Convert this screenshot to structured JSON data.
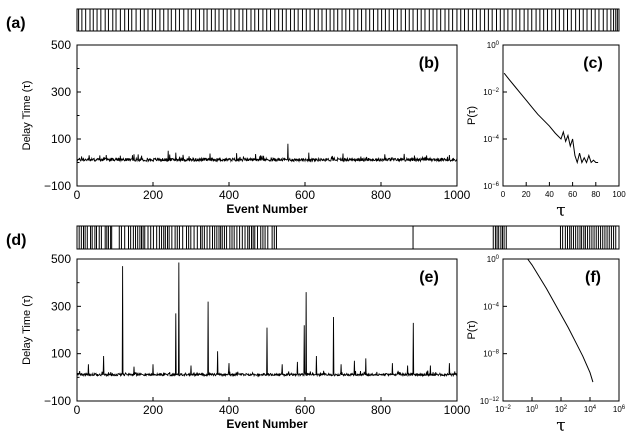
{
  "chart_data": [
    {
      "id": "a",
      "type": "barcode",
      "letter": "(a)",
      "x_range": [
        0,
        1000
      ],
      "event_positions": [
        3,
        9,
        16,
        24,
        30,
        37,
        44,
        52,
        58,
        66,
        72,
        80,
        88,
        95,
        101,
        109,
        117,
        124,
        131,
        139,
        145,
        153,
        160,
        168,
        174,
        182,
        189,
        197,
        205,
        211,
        219,
        226,
        234,
        240,
        248,
        255,
        262,
        270,
        277,
        284,
        291,
        299,
        306,
        313,
        321,
        328,
        335,
        343,
        350,
        357,
        365,
        372,
        379,
        386,
        394,
        401,
        408,
        416,
        423,
        430,
        438,
        445,
        452,
        460,
        467,
        474,
        481,
        489,
        496,
        503,
        511,
        518,
        525,
        533,
        540,
        547,
        555,
        562,
        569,
        576,
        584,
        591,
        598,
        606,
        613,
        620,
        628,
        635,
        642,
        650,
        657,
        664,
        671,
        679,
        686,
        693,
        701,
        708,
        715,
        722,
        730,
        737,
        744,
        752,
        759,
        766,
        774,
        781,
        788,
        795,
        803,
        810,
        817,
        825,
        832,
        839,
        847,
        854,
        861,
        868,
        876,
        883,
        890,
        898,
        905,
        912,
        920,
        927,
        934,
        941,
        949,
        956,
        963,
        971,
        978,
        985,
        990,
        994,
        997
      ]
    },
    {
      "id": "b",
      "type": "line",
      "letter": "(b)",
      "xlabel": "Event Number",
      "ylabel": "Delay Time (τ)",
      "xlim": [
        0,
        1000
      ],
      "ylim": [
        -100,
        500
      ],
      "xticks": [
        0,
        200,
        400,
        600,
        800,
        1000
      ],
      "yticks": [
        -100,
        100,
        300,
        500
      ],
      "baseline": 10,
      "noise": 8,
      "spikes": [
        [
          60,
          30
        ],
        [
          150,
          35
        ],
        [
          240,
          50
        ],
        [
          260,
          42
        ],
        [
          350,
          38
        ],
        [
          420,
          40
        ],
        [
          470,
          36
        ],
        [
          555,
          80
        ],
        [
          610,
          42
        ],
        [
          700,
          38
        ],
        [
          810,
          35
        ],
        [
          920,
          30
        ],
        [
          980,
          32
        ]
      ]
    },
    {
      "id": "c",
      "type": "line",
      "letter": "(c)",
      "ylabel": "P(τ)",
      "xlabel": "τ",
      "xlim": [
        0,
        100
      ],
      "ylog": true,
      "ylim_exp": [
        -6,
        0
      ],
      "xticks": [
        0,
        20,
        40,
        60,
        80,
        100
      ],
      "yticks": [
        "10⁰",
        "10⁻²",
        "10⁻⁴",
        "10⁻⁶"
      ],
      "x": [
        1,
        5,
        10,
        15,
        20,
        25,
        30,
        35,
        40,
        45,
        50,
        52,
        54,
        56,
        58,
        60,
        62,
        64,
        66,
        68,
        70,
        72,
        74,
        76,
        78,
        80,
        82
      ],
      "y_exp": [
        -1.2,
        -1.45,
        -1.75,
        -2.05,
        -2.35,
        -2.65,
        -2.95,
        -3.2,
        -3.45,
        -3.75,
        -4.0,
        -3.7,
        -4.1,
        -3.85,
        -4.3,
        -4.0,
        -4.7,
        -5.0,
        -4.6,
        -5.0,
        -4.8,
        -5.0,
        -4.7,
        -5.0,
        -4.9,
        -5.0,
        -5.0
      ]
    },
    {
      "id": "d",
      "type": "barcode",
      "letter": "(d)",
      "x_range": [
        0,
        1000
      ],
      "event_positions": [
        4,
        8,
        12,
        15,
        19,
        25,
        28,
        33,
        36,
        41,
        45,
        52,
        55,
        58,
        62,
        64,
        78,
        82,
        88,
        95,
        99,
        104,
        108,
        112,
        116,
        119,
        122,
        125,
        131,
        136,
        141,
        147,
        152,
        156,
        160,
        163,
        167,
        170,
        175,
        181,
        185,
        189,
        195,
        202,
        206,
        210,
        216,
        222,
        228,
        231,
        235,
        240,
        245,
        250,
        254,
        258,
        262,
        265,
        268,
        272,
        276,
        282,
        286,
        290,
        295,
        300,
        305,
        310,
        315,
        318,
        322,
        325,
        328,
        333,
        339,
        343,
        347,
        352,
        360,
        364,
        368,
        620,
        768,
        772,
        775,
        778,
        782,
        785,
        788,
        792,
        892,
        896,
        901,
        905,
        909,
        912,
        916,
        920,
        924,
        928,
        931,
        935,
        938,
        942,
        946,
        950,
        954,
        958,
        962,
        966,
        970,
        974,
        978,
        982,
        986,
        990,
        994
      ]
    },
    {
      "id": "e",
      "type": "line",
      "letter": "(e)",
      "xlabel": "Event Number",
      "ylabel": "Delay Time (τ)",
      "xlim": [
        0,
        1000
      ],
      "ylim": [
        -100,
        500
      ],
      "xticks": [
        0,
        200,
        400,
        600,
        800,
        1000
      ],
      "yticks": [
        -100,
        100,
        300,
        500
      ],
      "baseline": 10,
      "noise": 6,
      "spikes": [
        [
          30,
          55
        ],
        [
          70,
          90
        ],
        [
          120,
          470
        ],
        [
          150,
          45
        ],
        [
          200,
          55
        ],
        [
          260,
          270
        ],
        [
          268,
          485
        ],
        [
          300,
          50
        ],
        [
          345,
          320
        ],
        [
          370,
          110
        ],
        [
          400,
          60
        ],
        [
          500,
          210
        ],
        [
          540,
          55
        ],
        [
          580,
          65
        ],
        [
          598,
          220
        ],
        [
          603,
          360
        ],
        [
          630,
          90
        ],
        [
          675,
          255
        ],
        [
          695,
          55
        ],
        [
          730,
          70
        ],
        [
          760,
          80
        ],
        [
          830,
          60
        ],
        [
          870,
          50
        ],
        [
          885,
          230
        ],
        [
          930,
          50
        ],
        [
          980,
          60
        ]
      ]
    },
    {
      "id": "f",
      "type": "line",
      "letter": "(f)",
      "ylabel": "P(τ)",
      "xlabel": "τ",
      "xlog": true,
      "ylog": true,
      "xlim_exp": [
        -2,
        6
      ],
      "ylim_exp": [
        -12,
        0
      ],
      "xticks": [
        "10⁻²",
        "10⁰",
        "10²",
        "10⁴",
        "10⁶"
      ],
      "yticks": [
        "10⁰",
        "10⁻⁴",
        "10⁻⁸",
        "10⁻¹²"
      ],
      "x_exp": [
        -0.3,
        0,
        0.5,
        1,
        1.5,
        2,
        2.5,
        3,
        3.5,
        4,
        4.2
      ],
      "y_exp": [
        0,
        -0.5,
        -1.5,
        -2.5,
        -3.6,
        -4.7,
        -5.8,
        -7.0,
        -8.2,
        -9.6,
        -10.4
      ]
    }
  ]
}
